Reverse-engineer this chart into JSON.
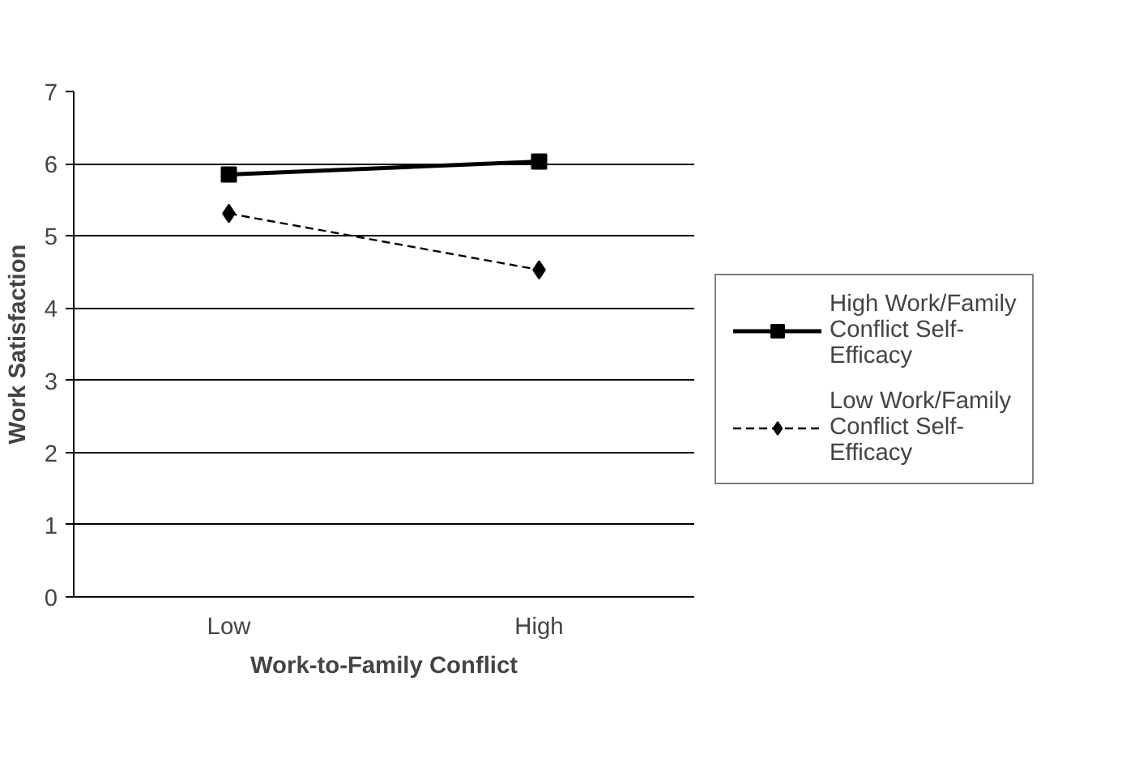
{
  "chart_data": {
    "type": "line",
    "xlabel": "Work-to-Family Conflict",
    "ylabel": "Work Satisfaction",
    "categories": [
      "Low",
      "High"
    ],
    "series": [
      {
        "name": "High Work/Family Conflict Self-Efficacy",
        "color": "#000000",
        "values": [
          5.85,
          6.03
        ],
        "marker": "square",
        "line_style": "solid"
      },
      {
        "name": "Low Work/Family Conflict Self-Efficacy",
        "color": "#000000",
        "values": [
          5.31,
          4.53
        ],
        "marker": "diamond",
        "line_style": "dashed"
      }
    ],
    "ylim": [
      0,
      7
    ],
    "yticks": [
      0,
      1,
      2,
      3,
      4,
      5,
      6,
      7
    ],
    "grid": "y",
    "legend": "right"
  }
}
